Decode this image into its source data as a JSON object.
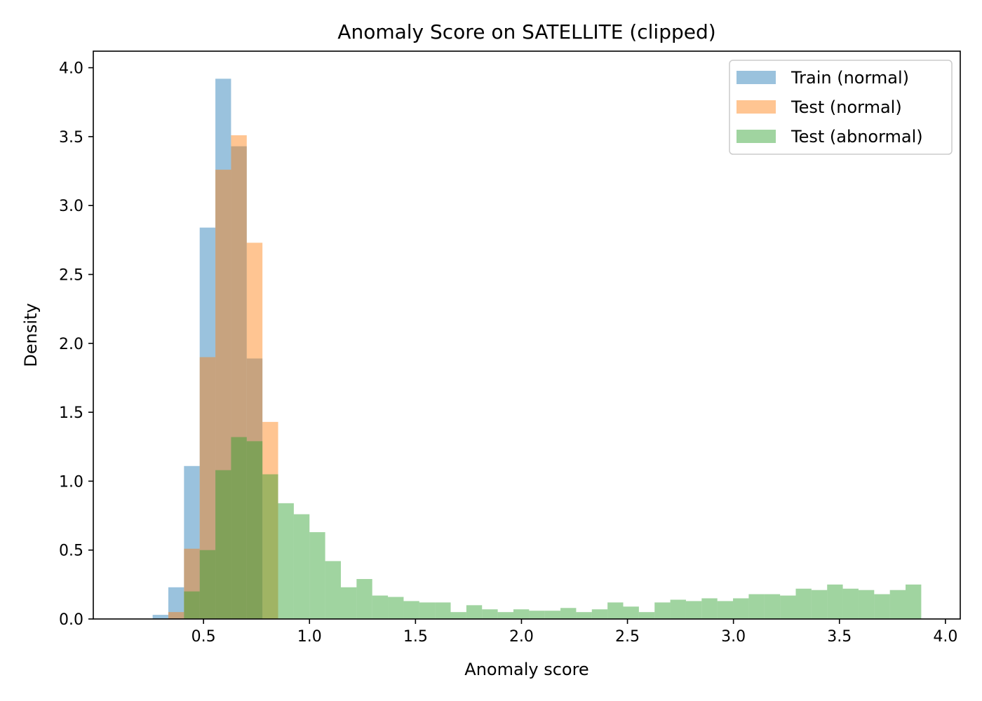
{
  "chart_data": {
    "type": "bar",
    "histogram": true,
    "title": "Anomaly Score on SATELLITE (clipped)",
    "xlabel": "Anomaly score",
    "ylabel": "Density",
    "xlim": [
      -0.02,
      4.07
    ],
    "ylim": [
      0.0,
      4.12
    ],
    "x_ticks": [
      0.5,
      1.0,
      1.5,
      2.0,
      2.5,
      3.0,
      3.5,
      4.0
    ],
    "x_tick_labels": [
      "0.5",
      "1.0",
      "1.5",
      "2.0",
      "2.5",
      "3.0",
      "3.5",
      "4.0"
    ],
    "y_ticks": [
      0.0,
      0.5,
      1.0,
      1.5,
      2.0,
      2.5,
      3.0,
      3.5,
      4.0
    ],
    "y_tick_labels": [
      "0.0",
      "0.5",
      "1.0",
      "1.5",
      "2.0",
      "2.5",
      "3.0",
      "3.5",
      "4.0"
    ],
    "grid": false,
    "legend_position": "top-right",
    "alpha": 0.45,
    "series": [
      {
        "name": "Train (normal)",
        "color": "#1f77b4",
        "bin_edges": [
          0.26,
          0.334,
          0.408,
          0.482,
          0.556,
          0.63,
          0.704,
          0.778
        ],
        "values": [
          0.03,
          0.23,
          1.11,
          2.84,
          3.92,
          3.43,
          1.89
        ]
      },
      {
        "name": "Test (normal)",
        "color": "#ff7f0e",
        "bin_edges": [
          0.334,
          0.408,
          0.482,
          0.556,
          0.63,
          0.704,
          0.778,
          0.852
        ],
        "values": [
          0.05,
          0.51,
          1.9,
          3.26,
          3.51,
          2.73,
          1.43
        ]
      },
      {
        "name": "Test (abnormal)",
        "color": "#2ca02c",
        "bin_edges": [
          0.408,
          0.482,
          0.556,
          0.63,
          0.704,
          0.778,
          0.852,
          0.926,
          1.0,
          1.074,
          1.148,
          1.222,
          1.296,
          1.37,
          1.444,
          1.518,
          1.592,
          1.666,
          1.74,
          1.814,
          1.888,
          1.962,
          2.036,
          2.11,
          2.184,
          2.258,
          2.332,
          2.406,
          2.48,
          2.554,
          2.628,
          2.702,
          2.776,
          2.85,
          2.924,
          2.998,
          3.072,
          3.146,
          3.22,
          3.294,
          3.368,
          3.442,
          3.516,
          3.59,
          3.664,
          3.738,
          3.812,
          3.886
        ],
        "values": [
          0.2,
          0.5,
          1.08,
          1.32,
          1.29,
          1.05,
          0.84,
          0.76,
          0.63,
          0.42,
          0.23,
          0.29,
          0.17,
          0.16,
          0.13,
          0.12,
          0.12,
          0.05,
          0.1,
          0.07,
          0.05,
          0.07,
          0.06,
          0.06,
          0.08,
          0.05,
          0.07,
          0.12,
          0.09,
          0.05,
          0.12,
          0.14,
          0.13,
          0.15,
          0.13,
          0.15,
          0.18,
          0.18,
          0.17,
          0.22,
          0.21,
          0.25,
          0.22,
          0.21,
          0.18,
          0.21,
          0.25
        ]
      }
    ]
  }
}
